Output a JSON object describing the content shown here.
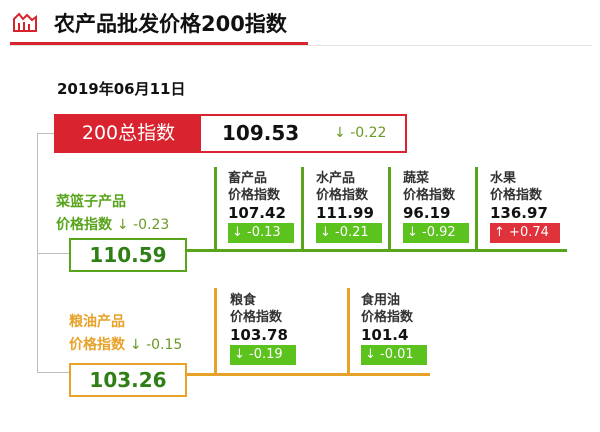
{
  "header": {
    "title": "农产品批发价格200指数"
  },
  "date": "2019年06月11日",
  "total": {
    "label": "200总指数",
    "value": "109.53",
    "change_arrow": "↓",
    "change": "-0.22"
  },
  "categories": [
    {
      "name_line1": "菜篮子产品",
      "name_line2": "价格指数",
      "change_arrow": "↓",
      "change": "-0.23",
      "value": "110.59",
      "items": [
        {
          "name_line1": "畜产品",
          "name_line2": "价格指数",
          "value": "107.42",
          "arrow": "↓",
          "change": "-0.13",
          "direction": "down"
        },
        {
          "name_line1": "水产品",
          "name_line2": "价格指数",
          "value": "111.99",
          "arrow": "↓",
          "change": "-0.21",
          "direction": "down"
        },
        {
          "name_line1": "蔬菜",
          "name_line2": "价格指数",
          "value": "96.19",
          "arrow": "↓",
          "change": "-0.92",
          "direction": "down"
        },
        {
          "name_line1": "水果",
          "name_line2": "价格指数",
          "value": "136.97",
          "arrow": "↑",
          "change": "+0.74",
          "direction": "up"
        }
      ]
    },
    {
      "name_line1": "粮油产品",
      "name_line2": "价格指数",
      "change_arrow": "↓",
      "change": "-0.15",
      "value": "103.26",
      "items": [
        {
          "name_line1": "粮食",
          "name_line2": "价格指数",
          "value": "103.78",
          "arrow": "↓",
          "change": "-0.19",
          "direction": "down"
        },
        {
          "name_line1": "食用油",
          "name_line2": "价格指数",
          "value": "101.4",
          "arrow": "↓",
          "change": "-0.01",
          "direction": "down"
        }
      ]
    }
  ],
  "colors": {
    "red": "#d9232e",
    "green": "#58a41b",
    "gold": "#e7a22a",
    "badge_down": "#5cc21d",
    "badge_up": "#e0323b"
  },
  "icons": {
    "header": "market-chart-icon"
  }
}
